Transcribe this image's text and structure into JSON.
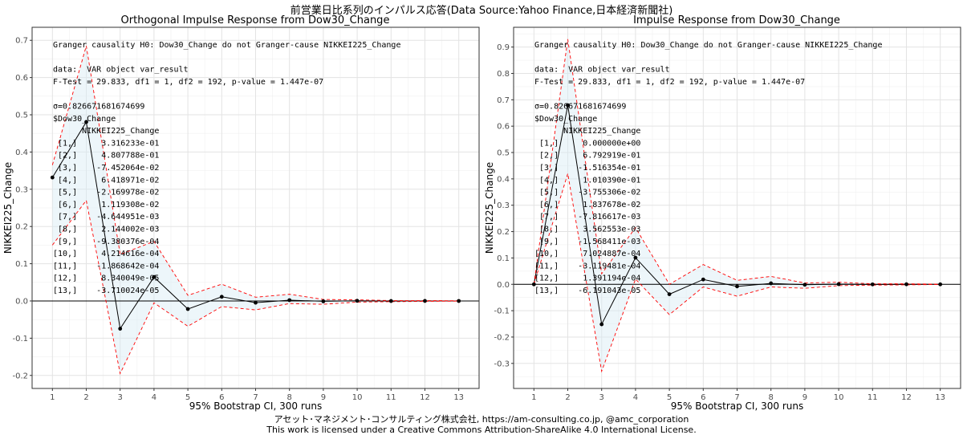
{
  "page": {
    "main_title": "前営業日比系列のインパルス応答(Data Source:Yahoo Finance,日本経済新聞社)",
    "footer_line1": "アセット･マネジメント･コンサルティング株式会社, https://am-consulting.co.jp, @amc_corporation",
    "footer_line2": "This work is licensed under a Creative Commons Attribution-ShareAlike 4.0 International License."
  },
  "chart_data": [
    {
      "type": "line",
      "title": "Orthogonal Impulse Response from Dow30_Change",
      "xlabel": "95% Bootstrap CI, 300 runs",
      "ylabel": "NIKKEI225_Change",
      "x": [
        1,
        2,
        3,
        4,
        5,
        6,
        7,
        8,
        9,
        10,
        11,
        12,
        13
      ],
      "xlim": [
        0.4,
        13.6
      ],
      "ylim": [
        -0.235,
        0.735
      ],
      "yticks": [
        -0.2,
        -0.1,
        0.0,
        0.1,
        0.2,
        0.3,
        0.4,
        0.5,
        0.6,
        0.7
      ],
      "ytick_labels": [
        "-0.2",
        "-0.1",
        "0.0",
        "0.1",
        "0.2",
        "0.3",
        "0.4",
        "0.5",
        "0.6",
        "0.7"
      ],
      "grid": true,
      "series": [
        {
          "role": "irf",
          "color": "#000000",
          "values": [
            0.3316233,
            0.4807788,
            -0.07452064,
            0.06418971,
            -0.02169978,
            0.01119308,
            -0.004644951,
            0.002144002,
            -0.0009380376,
            0.0004214616,
            -0.0001868642,
            8.340049e-05,
            -3.710024e-05
          ]
        },
        {
          "role": "upper",
          "color": "#ff0000",
          "dashed": true,
          "values": [
            0.365,
            0.685,
            0.125,
            0.16,
            0.015,
            0.045,
            0.01,
            0.018,
            0.004,
            0.003,
            0.001,
            0.001,
            0.0005
          ]
        },
        {
          "role": "lower",
          "color": "#ff0000",
          "dashed": true,
          "values": [
            0.15,
            0.27,
            -0.195,
            -0.005,
            -0.068,
            -0.015,
            -0.024,
            -0.007,
            -0.009,
            -0.003,
            -0.002,
            -0.001,
            -0.0005
          ]
        }
      ],
      "annotation": [
        "Granger causality H0: Dow30_Change do not Granger-cause NIKKEI225_Change",
        "",
        "data:  VAR object var_result",
        "F-Test = 29.833, df1 = 1, df2 = 192, p-value = 1.447e-07",
        "",
        "σ=0.826671681674699",
        "$Dow30_Change",
        "      NIKKEI225_Change",
        " [1,]     3.316233e-01",
        " [2,]     4.807788e-01",
        " [3,]    -7.452064e-02",
        " [4,]     6.418971e-02",
        " [5,]    -2.169978e-02",
        " [6,]     1.119308e-02",
        " [7,]    -4.644951e-03",
        " [8,]     2.144002e-03",
        " [9,]    -9.380376e-04",
        "[10,]     4.214616e-04",
        "[11,]    -1.868642e-04",
        "[12,]     8.340049e-05",
        "[13,]    -3.710024e-05"
      ]
    },
    {
      "type": "line",
      "title": "Impulse Response from Dow30_Change",
      "xlabel": "95% Bootstrap CI, 300 runs",
      "ylabel": "NIKKEI225_Change",
      "x": [
        1,
        2,
        3,
        4,
        5,
        6,
        7,
        8,
        9,
        10,
        11,
        12,
        13
      ],
      "xlim": [
        0.4,
        13.6
      ],
      "ylim": [
        -0.395,
        0.975
      ],
      "yticks": [
        -0.3,
        -0.2,
        -0.1,
        0.0,
        0.1,
        0.2,
        0.3,
        0.4,
        0.5,
        0.6,
        0.7,
        0.8,
        0.9
      ],
      "ytick_labels": [
        "-0.3",
        "-0.2",
        "-0.1",
        "0.0",
        "0.1",
        "0.2",
        "0.3",
        "0.4",
        "0.5",
        "0.6",
        "0.7",
        "0.8",
        "0.9"
      ],
      "grid": true,
      "series": [
        {
          "role": "irf",
          "color": "#000000",
          "values": [
            0.0,
            0.6792919,
            -0.1516354,
            0.101039,
            -0.03755306,
            0.01837678,
            -0.007816617,
            0.003562553,
            -0.001568411,
            0.0007024887,
            -0.0003119481,
            0.0001391194,
            -6.191043e-05
          ]
        },
        {
          "role": "upper",
          "color": "#ff0000",
          "dashed": true,
          "values": [
            0.0,
            0.93,
            0.04,
            0.215,
            0.0,
            0.075,
            0.015,
            0.03,
            0.005,
            0.008,
            0.002,
            0.002,
            0.0005
          ]
        },
        {
          "role": "lower",
          "color": "#ff0000",
          "dashed": true,
          "values": [
            0.0,
            0.42,
            -0.33,
            0.02,
            -0.115,
            -0.01,
            -0.045,
            -0.01,
            -0.015,
            -0.005,
            -0.003,
            -0.002,
            -0.0005
          ]
        }
      ],
      "annotation": [
        "Granger causality H0: Dow30_Change do not Granger-cause NIKKEI225_Change",
        "",
        "data:  VAR object var_result",
        "F-Test = 29.833, df1 = 1, df2 = 192, p-value = 1.447e-07",
        "",
        "σ=0.826671681674699",
        "$Dow30_Change",
        "      NIKKEI225_Change",
        " [1,]     0.000000e+00",
        " [2,]     6.792919e-01",
        " [3,]    -1.516354e-01",
        " [4,]     1.010390e-01",
        " [5,]    -3.755306e-02",
        " [6,]     1.837678e-02",
        " [7,]    -7.816617e-03",
        " [8,]     3.562553e-03",
        " [9,]    -1.568411e-03",
        "[10,]     7.024887e-04",
        "[11,]    -3.119481e-04",
        "[12,]     1.391194e-04",
        "[13,]    -6.191043e-05"
      ]
    }
  ]
}
